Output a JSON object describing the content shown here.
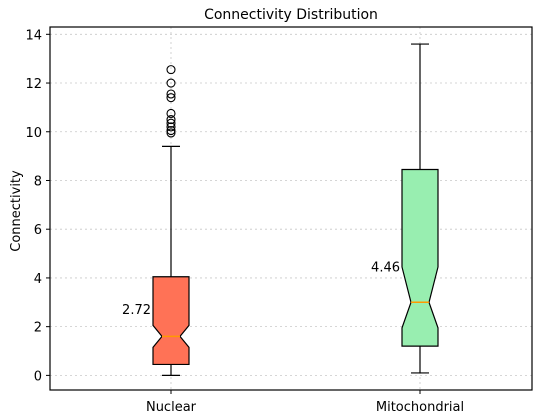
{
  "chart_data": {
    "type": "boxplot",
    "title": "Connectivity Distribution",
    "xlabel": "",
    "ylabel": "Connectivity",
    "ylim": [
      -0.6,
      14.3
    ],
    "yticks": [
      0,
      2,
      4,
      6,
      8,
      10,
      12,
      14
    ],
    "grid": true,
    "notched": true,
    "categories": [
      "Nuclear",
      "Mitochondrial"
    ],
    "boxes": [
      {
        "category": "Nuclear",
        "color": "#ff7256",
        "whisker_low": 0.0,
        "q1": 0.45,
        "median": 1.6,
        "q3": 4.05,
        "whisker_high": 9.4,
        "notch_low": 1.15,
        "notch_high": 2.05,
        "outliers": [
          9.95,
          10.05,
          10.2,
          10.35,
          10.5,
          10.75,
          11.4,
          11.55,
          12.0,
          12.55
        ],
        "annotation": "2.72",
        "annotation_value": 2.72
      },
      {
        "category": "Mitochondrial",
        "color": "#98eeb0",
        "whisker_low": 0.1,
        "q1": 1.2,
        "median": 3.0,
        "q3": 8.45,
        "whisker_high": 13.6,
        "notch_low": 1.95,
        "notch_high": 4.45,
        "outliers": [],
        "annotation": "4.46",
        "annotation_value": 4.46
      }
    ],
    "median_color": "#ff9900"
  }
}
